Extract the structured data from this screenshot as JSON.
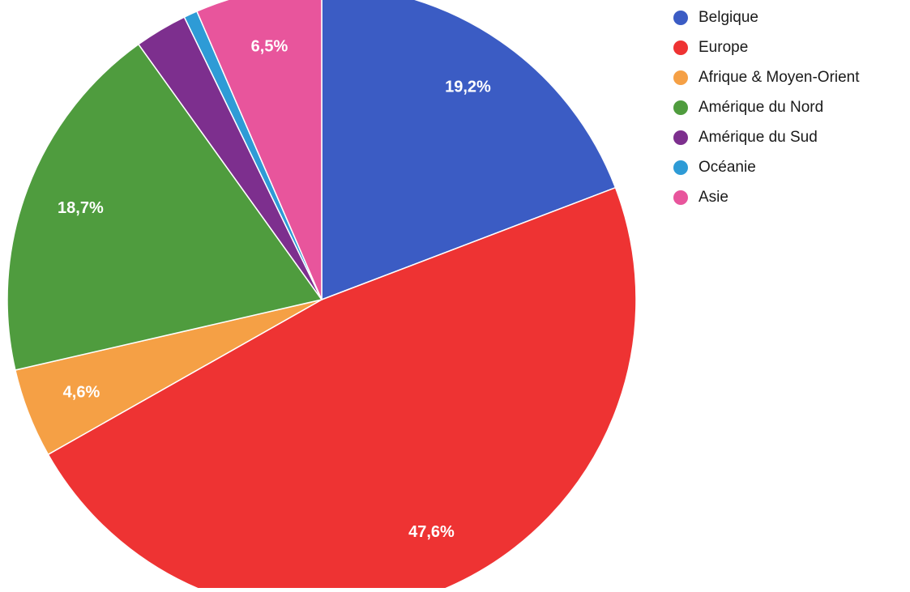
{
  "chart_data": {
    "type": "pie",
    "start_angle_deg": 0,
    "direction": "clockwise",
    "legend_position": "right",
    "slices": [
      {
        "name": "Belgique",
        "value": 19.2,
        "label": "19,2%",
        "color": "#3b5cc4"
      },
      {
        "name": "Europe",
        "value": 47.6,
        "label": "47,6%",
        "color": "#ee3333"
      },
      {
        "name": "Afrique & Moyen-Orient",
        "value": 4.6,
        "label": "4,6%",
        "color": "#f5a045"
      },
      {
        "name": "Amérique du Nord",
        "value": 18.7,
        "label": "18,7%",
        "color": "#4f9c3e"
      },
      {
        "name": "Amérique du Sud",
        "value": 2.7,
        "label": "",
        "color": "#7d2f8e"
      },
      {
        "name": "Océanie",
        "value": 0.7,
        "label": "",
        "color": "#2e9bd6"
      },
      {
        "name": "Asie",
        "value": 6.5,
        "label": "6,5%",
        "color": "#e8559c"
      }
    ]
  }
}
